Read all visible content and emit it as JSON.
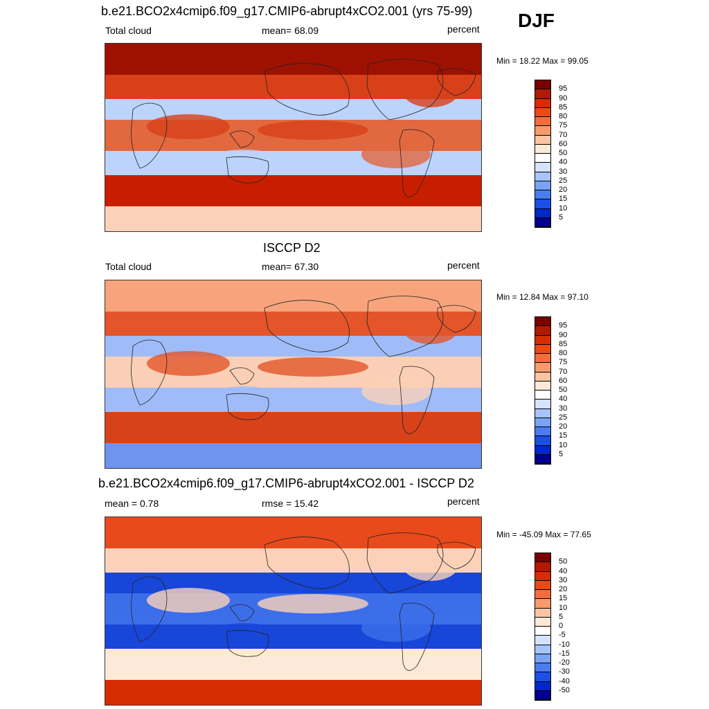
{
  "season": "DJF",
  "panels": [
    {
      "title": "b.e21.BCO2x4cmip6.f09_g17.CMIP6-abrupt4xCO2.001 (yrs 75-99)",
      "left_label": "Total cloud",
      "center_label": "mean=  68.09",
      "units": "percent",
      "minmax": "Min =  18.22 Max =  99.05",
      "map_desc": "model",
      "colorbar": {
        "labels": [
          "95",
          "90",
          "85",
          "80",
          "75",
          "70",
          "60",
          "50",
          "40",
          "30",
          "25",
          "20",
          "15",
          "10",
          "5"
        ],
        "colors": [
          "#7a0000",
          "#b01a00",
          "#d42e00",
          "#ec4a12",
          "#f46d3a",
          "#f99a6c",
          "#fcc4a3",
          "#fde9d8",
          "#fefefe",
          "#d4e3ff",
          "#a8c4fb",
          "#7aa2f5",
          "#4b7cf0",
          "#1a4fe8",
          "#0028c8",
          "#00008a"
        ]
      },
      "field_colors": {
        "land_north": "#9e1100",
        "band_north": "#d8401a",
        "tropic": "#e26840",
        "subtropic": "#bcd3fb",
        "south_ocean": "#c81e00",
        "antarctic": "#fbd2b8"
      }
    },
    {
      "title": "ISCCP D2",
      "left_label": "Total cloud",
      "center_label": "mean=  67.30",
      "units": "percent",
      "minmax": "Min =  12.84 Max =  97.10",
      "map_desc": "obs",
      "colorbar": {
        "labels": [
          "95",
          "90",
          "85",
          "80",
          "75",
          "70",
          "60",
          "50",
          "40",
          "30",
          "25",
          "20",
          "15",
          "10",
          "5"
        ],
        "colors": [
          "#7a0000",
          "#b01a00",
          "#d42e00",
          "#ec4a12",
          "#f46d3a",
          "#f99a6c",
          "#fcc4a3",
          "#fde9d8",
          "#fefefe",
          "#d4e3ff",
          "#a8c4fb",
          "#7aa2f5",
          "#4b7cf0",
          "#1a4fe8",
          "#0028c8",
          "#00008a"
        ]
      },
      "field_colors": {
        "land_north": "#f7a47c",
        "band_north": "#e4552a",
        "tropic": "#fbcfb5",
        "subtropic": "#9fbcf8",
        "south_ocean": "#d8421a",
        "antarctic": "#6e94ef"
      }
    },
    {
      "title": "b.e21.BCO2x4cmip6.f09_g17.CMIP6-abrupt4xCO2.001 - ISCCP D2",
      "left_label": "mean =   0.78",
      "center_label": "rmse =  15.42",
      "units": "percent",
      "minmax": "Min = -45.09 Max =  77.65",
      "map_desc": "diff",
      "colorbar": {
        "labels": [
          "50",
          "40",
          "30",
          "20",
          "15",
          "10",
          "5",
          "0",
          "-5",
          "-10",
          "-15",
          "-20",
          "-30",
          "-40",
          "-50"
        ],
        "colors": [
          "#7a0000",
          "#b01a00",
          "#d42e00",
          "#ec4a12",
          "#f46d3a",
          "#f99a6c",
          "#fcc4a3",
          "#fde9d8",
          "#fefefe",
          "#d4e3ff",
          "#a8c4fb",
          "#7aa2f5",
          "#4b7cf0",
          "#1a4fe8",
          "#0028c8",
          "#00008a"
        ]
      },
      "field_colors": {
        "land_north": "#e84a1c",
        "band_north": "#fbd2b8",
        "tropic": "#3d6eea",
        "subtropic": "#1846d8",
        "south_ocean": "#fde9d8",
        "antarctic": "#d42e00"
      }
    }
  ]
}
